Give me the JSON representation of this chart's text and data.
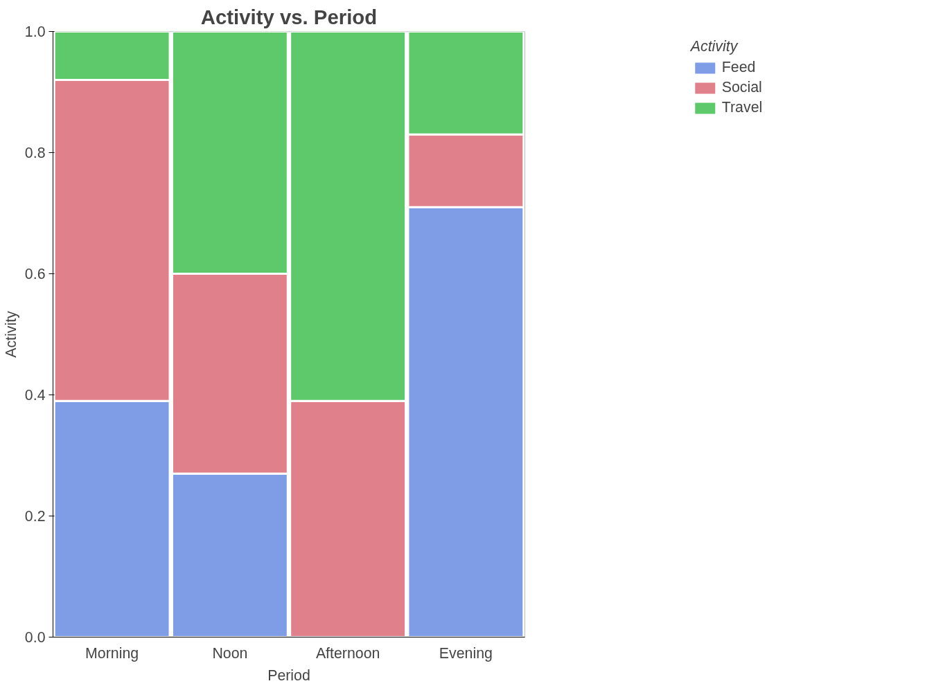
{
  "chart_data": {
    "type": "bar",
    "title": "Activity vs. Period",
    "xlabel": "Period",
    "ylabel": "Activity",
    "legend_title": "Activity",
    "stacked": true,
    "categories": [
      "Morning",
      "Noon",
      "Afternoon",
      "Evening"
    ],
    "series": [
      {
        "name": "Feed",
        "color": "#7f9de6",
        "values": [
          0.39,
          0.27,
          0,
          0.71
        ]
      },
      {
        "name": "Social",
        "color": "#e0808a",
        "values": [
          0.53,
          0.33,
          0.39,
          0.12
        ]
      },
      {
        "name": "Travel",
        "color": "#5ec96a",
        "values": [
          0.08,
          0.4,
          0.61,
          0.17
        ]
      }
    ],
    "ylim": [
      0,
      1
    ],
    "yticks": [
      {
        "value": 0,
        "label": "0.0"
      },
      0.2,
      0.4,
      0.6,
      0.8,
      {
        "value": 1,
        "label": "1.0"
      }
    ],
    "grid": false,
    "legend": "top right"
  }
}
